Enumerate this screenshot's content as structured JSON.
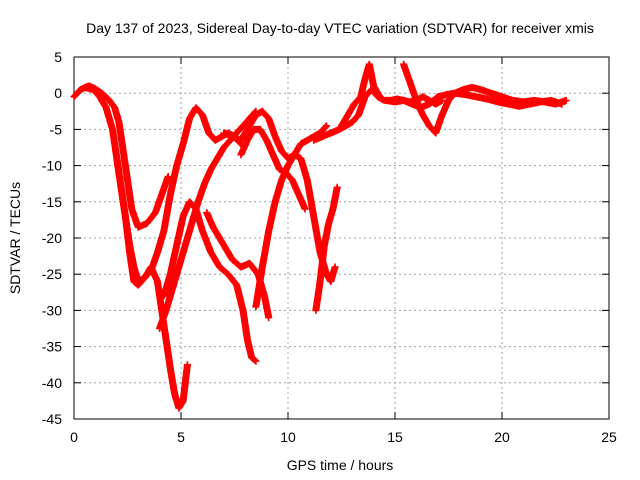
{
  "chart_data": {
    "type": "scatter",
    "title": "Day 137 of 2023, Sidereal Day-to-day VTEC variation (SDTVAR) for receiver xmis",
    "xlabel": "GPS time / hours",
    "ylabel": "SDTVAR / TECUs",
    "xlim": [
      0,
      25
    ],
    "ylim": [
      -45,
      5
    ],
    "xticks": [
      0,
      5,
      10,
      15,
      20,
      25
    ],
    "yticks": [
      5,
      0,
      -5,
      -10,
      -15,
      -20,
      -25,
      -30,
      -35,
      -40,
      -45
    ],
    "grid": true,
    "marker": "plus",
    "color": "#ff0000",
    "series": [
      {
        "x": [
          0.0,
          0.3,
          0.7,
          1.0,
          1.3,
          1.6,
          1.9,
          2.1,
          2.3,
          2.5,
          2.7,
          3.0,
          3.4,
          3.8,
          4.1,
          4.4
        ],
        "y": [
          -0.5,
          0.5,
          1.0,
          0.6,
          0.0,
          -0.8,
          -2.0,
          -4.0,
          -8.0,
          -12.0,
          -16.0,
          -18.5,
          -18.0,
          -16.5,
          -14.0,
          -11.5
        ]
      },
      {
        "x": [
          0.5,
          0.9,
          1.2,
          1.5,
          1.8,
          2.1,
          2.4,
          2.6,
          2.8,
          3.0,
          3.3,
          3.6,
          3.9,
          4.1,
          4.3,
          4.5,
          4.7,
          4.9,
          5.1,
          5.3
        ],
        "y": [
          0.8,
          0.5,
          -0.5,
          -2.0,
          -5.0,
          -11.0,
          -17.0,
          -22.0,
          -26.0,
          -26.5,
          -25.5,
          -24.0,
          -26.0,
          -30.0,
          -34.0,
          -38.0,
          -41.5,
          -43.5,
          -42.5,
          -37.5
        ]
      },
      {
        "x": [
          2.0,
          2.2,
          2.4,
          2.6,
          2.8,
          3.0,
          3.3,
          3.6,
          3.9,
          4.2,
          4.5,
          4.8,
          5.1,
          5.4,
          5.7,
          6.0,
          6.3,
          6.6,
          6.9,
          7.2,
          7.5,
          7.8
        ],
        "y": [
          -9.0,
          -13.0,
          -17.0,
          -21.0,
          -24.0,
          -26.0,
          -25.5,
          -24.5,
          -22.0,
          -19.0,
          -14.0,
          -10.0,
          -7.0,
          -3.5,
          -2.0,
          -3.0,
          -5.5,
          -6.5,
          -6.0,
          -5.5,
          -6.0,
          -7.0
        ]
      },
      {
        "x": [
          4.0,
          4.3,
          4.6,
          4.9,
          5.2,
          5.5,
          5.8,
          6.1,
          6.4,
          6.7,
          7.0,
          7.3,
          7.6,
          7.9,
          8.2,
          8.5
        ],
        "y": [
          -32.5,
          -30.0,
          -27.0,
          -24.0,
          -21.0,
          -18.0,
          -15.0,
          -12.5,
          -10.5,
          -9.0,
          -7.5,
          -6.5,
          -5.5,
          -4.5,
          -3.5,
          -2.5
        ]
      },
      {
        "x": [
          4.2,
          4.5,
          4.8,
          5.1,
          5.4,
          5.7,
          6.0,
          6.4,
          6.8,
          7.2,
          7.6,
          7.9,
          8.1,
          8.3,
          8.5
        ],
        "y": [
          -28.0,
          -25.0,
          -21.0,
          -17.0,
          -15.0,
          -16.0,
          -19.0,
          -22.0,
          -24.0,
          -25.0,
          -26.5,
          -30.0,
          -34.0,
          -36.5,
          -37.0
        ]
      },
      {
        "x": [
          6.2,
          6.5,
          6.8,
          7.1,
          7.4,
          7.8,
          8.2,
          8.6,
          8.9,
          9.1
        ],
        "y": [
          -16.5,
          -18.5,
          -20.0,
          -21.5,
          -23.0,
          -24.0,
          -23.5,
          -25.0,
          -28.0,
          -31.0
        ]
      },
      {
        "x": [
          7.0,
          7.4,
          7.8,
          8.2,
          8.5,
          8.8,
          9.1,
          9.4,
          9.7,
          10.0,
          10.3,
          10.6,
          10.9,
          11.2,
          11.5,
          11.8
        ],
        "y": [
          -5.5,
          -6.0,
          -6.5,
          -4.5,
          -3.0,
          -2.5,
          -3.5,
          -6.0,
          -8.0,
          -9.0,
          -8.5,
          -7.0,
          -6.5,
          -6.0,
          -5.5,
          -4.5
        ]
      },
      {
        "x": [
          7.8,
          8.1,
          8.4,
          8.7,
          9.0,
          9.3,
          9.6,
          9.9,
          10.2,
          10.5,
          10.8
        ],
        "y": [
          -8.5,
          -6.5,
          -5.0,
          -5.0,
          -6.5,
          -8.5,
          -10.5,
          -11.0,
          -12.0,
          -14.0,
          -16.0
        ]
      },
      {
        "x": [
          8.5,
          8.8,
          9.1,
          9.4,
          9.7,
          10.0,
          10.3,
          10.6,
          10.9,
          11.2,
          11.5,
          11.8,
          12.0,
          12.2
        ],
        "y": [
          -29.5,
          -24.0,
          -19.0,
          -15.0,
          -12.0,
          -10.0,
          -8.5,
          -9.0,
          -12.0,
          -17.0,
          -22.0,
          -25.0,
          -26.0,
          -24.0
        ]
      },
      {
        "x": [
          11.3,
          11.5,
          11.7,
          11.9,
          12.1,
          12.3
        ],
        "y": [
          -30.0,
          -26.0,
          -21.0,
          -18.0,
          -16.0,
          -13.0
        ]
      },
      {
        "x": [
          11.2,
          11.6,
          12.0,
          12.4,
          12.7,
          13.0,
          13.3,
          13.6,
          13.9,
          14.2,
          14.5,
          14.8,
          15.1,
          15.4,
          15.7,
          16.0,
          16.3,
          16.6,
          16.9,
          17.2
        ],
        "y": [
          -6.5,
          -6.0,
          -5.5,
          -5.0,
          -4.5,
          -4.0,
          -3.0,
          -0.5,
          0.5,
          -0.5,
          -1.0,
          -1.0,
          -0.8,
          -1.0,
          -1.2,
          -1.0,
          -0.5,
          -1.0,
          -1.5,
          -1.0
        ]
      },
      {
        "x": [
          12.5,
          12.8,
          13.1,
          13.4,
          13.6,
          13.8,
          14.0,
          14.3
        ],
        "y": [
          -4.5,
          -3.0,
          -1.5,
          -0.5,
          2.0,
          4.0,
          1.0,
          -0.5
        ]
      },
      {
        "x": [
          15.4,
          15.7,
          16.0,
          16.3,
          16.6,
          16.9,
          17.2,
          17.5,
          17.8,
          18.2,
          18.6,
          19.0,
          19.5,
          20.0,
          20.5,
          21.0,
          21.5,
          22.0,
          22.5,
          23.0
        ],
        "y": [
          4.0,
          1.5,
          -1.0,
          -3.0,
          -4.5,
          -5.5,
          -3.0,
          -1.0,
          0.0,
          0.5,
          0.8,
          0.5,
          0.0,
          -0.5,
          -1.0,
          -1.2,
          -1.0,
          -1.2,
          -1.5,
          -1.0
        ]
      },
      {
        "x": [
          14.6,
          15.0,
          15.4,
          15.8,
          16.2,
          16.6,
          17.0,
          17.4,
          17.8,
          18.3,
          18.8,
          19.3,
          19.8,
          20.3,
          20.8,
          21.3,
          21.8,
          22.3,
          22.8
        ],
        "y": [
          -1.0,
          -1.2,
          -1.0,
          -1.5,
          -2.0,
          -1.5,
          -0.5,
          -0.2,
          0.0,
          -0.2,
          -0.5,
          -0.8,
          -1.2,
          -1.5,
          -1.8,
          -1.5,
          -1.2,
          -1.0,
          -1.5
        ]
      }
    ]
  }
}
